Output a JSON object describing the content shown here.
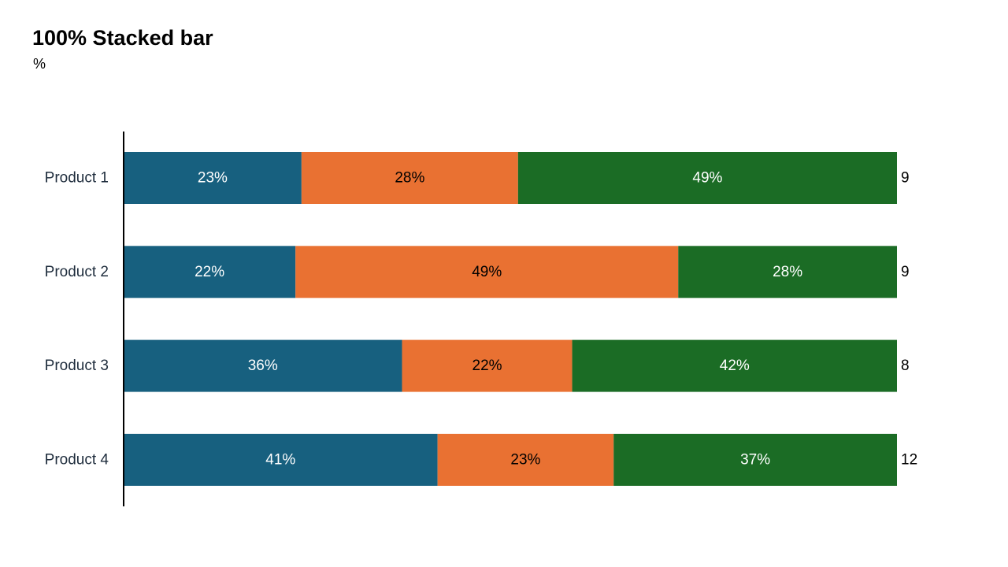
{
  "chart_data": {
    "type": "bar",
    "orientation": "horizontal",
    "stacking": "percent",
    "title": "100% Stacked bar",
    "subtitle": "%",
    "categories": [
      "Product 1",
      "Product 2",
      "Product 3",
      "Product 4"
    ],
    "series": [
      {
        "values": [
          23,
          22,
          36,
          41
        ],
        "color": "#17607f",
        "label_color": "#ffffff"
      },
      {
        "values": [
          28,
          49,
          22,
          23
        ],
        "color": "#e97132",
        "label_color": "#000000"
      },
      {
        "values": [
          49,
          28,
          42,
          37
        ],
        "color": "#1b6c25",
        "label_color": "#ffffff"
      }
    ],
    "segment_labels": [
      [
        "23%",
        "22%",
        "36%",
        "41%"
      ],
      [
        "28%",
        "49%",
        "22%",
        "23%"
      ],
      [
        "49%",
        "28%",
        "42%",
        "37%"
      ]
    ],
    "totals": [
      "9",
      "9",
      "8",
      "12"
    ],
    "xlim": [
      0,
      100
    ],
    "grid": false,
    "legend": "none"
  }
}
